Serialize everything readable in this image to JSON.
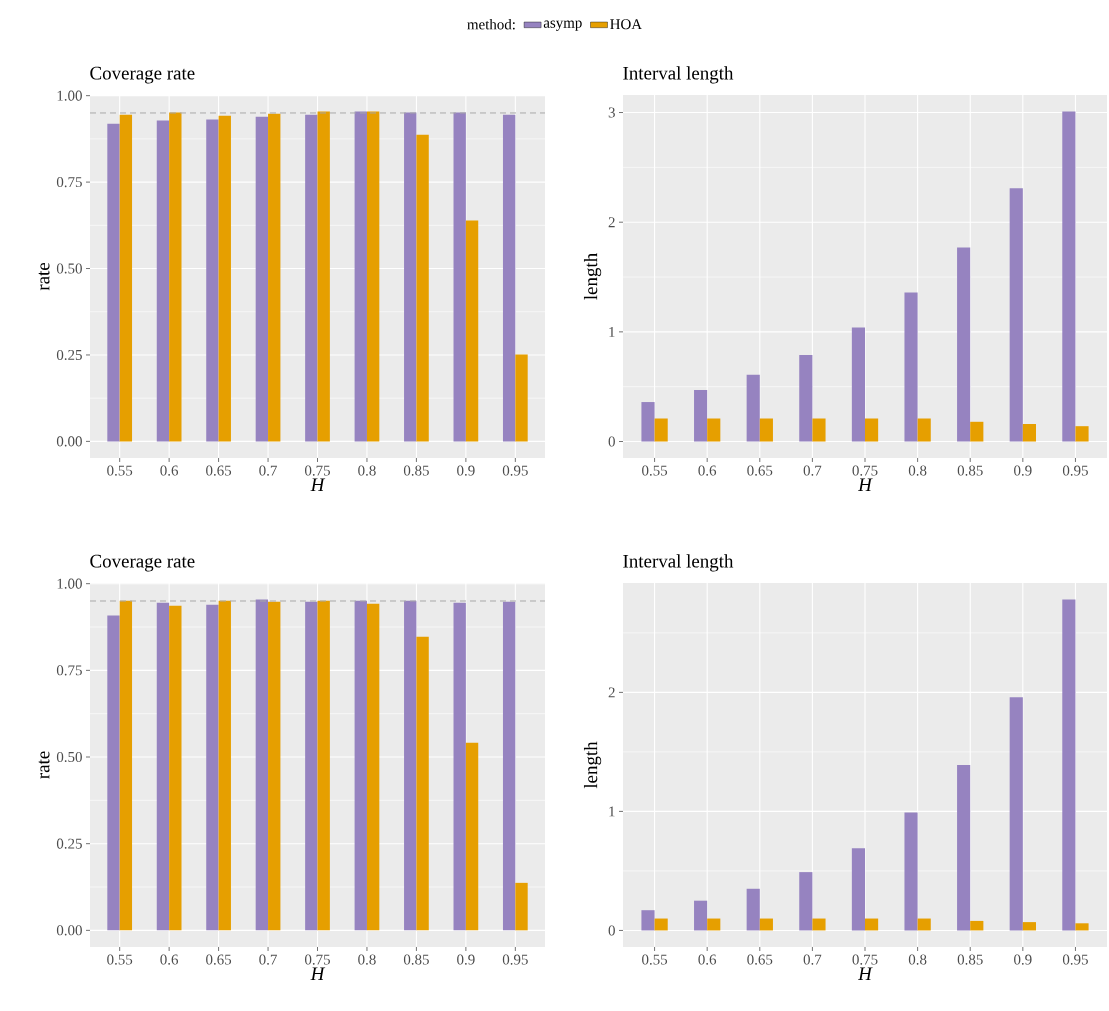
{
  "chart_data": [
    {
      "type": "bar",
      "title": "Coverage rate",
      "xlabel": "H",
      "ylabel": "rate",
      "legend_title": "method:",
      "legend": "top",
      "categories": [
        "0.55",
        "0.6",
        "0.65",
        "0.7",
        "0.75",
        "0.8",
        "0.85",
        "0.9",
        "0.95"
      ],
      "series": [
        {
          "name": "asymp",
          "color": "#9683c0",
          "values": [
            0.919,
            0.928,
            0.931,
            0.939,
            0.945,
            0.954,
            0.951,
            0.951,
            0.945
          ]
        },
        {
          "name": "HOA",
          "color": "#e69f00",
          "values": [
            0.945,
            0.951,
            0.942,
            0.948,
            0.954,
            0.954,
            0.887,
            0.639,
            0.251
          ]
        }
      ],
      "ylim": [
        -0.048,
        1.002
      ],
      "yticks": [
        {
          "value": 0,
          "label": "0.00"
        },
        {
          "value": 0.25,
          "label": "0.25"
        },
        {
          "value": 0.5,
          "label": "0.50"
        },
        {
          "value": 0.75,
          "label": "0.75"
        },
        {
          "value": 1,
          "label": "1.00"
        },
        {
          "value": 0.125,
          "label": null
        },
        {
          "value": 0.375,
          "label": null
        },
        {
          "value": 0.625,
          "label": null
        },
        {
          "value": 0.875,
          "label": null
        }
      ],
      "ref_lines": [
        {
          "axis": "y",
          "value": 0.95,
          "color": "#a8a8a8",
          "line_style": "dashed"
        }
      ],
      "grid": true
    },
    {
      "type": "bar",
      "title": "Interval length",
      "xlabel": "H",
      "ylabel": "length",
      "categories": [
        "0.55",
        "0.6",
        "0.65",
        "0.7",
        "0.75",
        "0.8",
        "0.85",
        "0.9",
        "0.95"
      ],
      "series": [
        {
          "color": "#9683c0",
          "values": [
            0.36,
            0.47,
            0.61,
            0.79,
            1.04,
            1.36,
            1.77,
            2.31,
            3.01
          ]
        },
        {
          "color": "#e69f00",
          "values": [
            0.21,
            0.21,
            0.21,
            0.21,
            0.21,
            0.21,
            0.18,
            0.16,
            0.14
          ]
        }
      ],
      "ylim": [
        -0.15,
        3.16
      ],
      "yticks": [
        0,
        1,
        2,
        3,
        {
          "value": 0.5,
          "label": null
        },
        {
          "value": 1.5,
          "label": null
        },
        {
          "value": 2.5,
          "label": null
        }
      ],
      "grid": true
    },
    {
      "type": "bar",
      "title": "Coverage rate",
      "xlabel": "H",
      "ylabel": "rate",
      "categories": [
        "0.55",
        "0.6",
        "0.65",
        "0.7",
        "0.75",
        "0.8",
        "0.85",
        "0.9",
        "0.95"
      ],
      "series": [
        {
          "color": "#9683c0",
          "values": [
            0.908,
            0.945,
            0.939,
            0.954,
            0.948,
            0.951,
            0.951,
            0.945,
            0.948
          ]
        },
        {
          "color": "#e69f00",
          "values": [
            0.951,
            0.936,
            0.951,
            0.948,
            0.951,
            0.942,
            0.847,
            0.541,
            0.137
          ]
        }
      ],
      "ylim": [
        -0.048,
        1.002
      ],
      "yticks": [
        {
          "value": 0,
          "label": "0.00"
        },
        {
          "value": 0.25,
          "label": "0.25"
        },
        {
          "value": 0.5,
          "label": "0.50"
        },
        {
          "value": 0.75,
          "label": "0.75"
        },
        {
          "value": 1,
          "label": "1.00"
        },
        {
          "value": 0.125,
          "label": null
        },
        {
          "value": 0.375,
          "label": null
        },
        {
          "value": 0.625,
          "label": null
        },
        {
          "value": 0.875,
          "label": null
        }
      ],
      "ref_lines": [
        {
          "axis": "y",
          "value": 0.95,
          "color": "#a8a8a8",
          "line_style": "dashed"
        }
      ],
      "grid": true
    },
    {
      "type": "bar",
      "title": "Interval length",
      "xlabel": "H",
      "ylabel": "length",
      "categories": [
        "0.55",
        "0.6",
        "0.65",
        "0.7",
        "0.75",
        "0.8",
        "0.85",
        "0.9",
        "0.95"
      ],
      "series": [
        {
          "color": "#9683c0",
          "values": [
            0.17,
            0.25,
            0.35,
            0.49,
            0.69,
            0.99,
            1.39,
            1.96,
            2.78
          ]
        },
        {
          "color": "#e69f00",
          "values": [
            0.1,
            0.1,
            0.1,
            0.1,
            0.1,
            0.1,
            0.08,
            0.07,
            0.06
          ]
        }
      ],
      "ylim": [
        -0.139,
        2.919
      ],
      "yticks": [
        0,
        1,
        2,
        {
          "value": 0.5,
          "label": null
        },
        {
          "value": 1.5,
          "label": null
        },
        {
          "value": 2.5,
          "label": null
        }
      ],
      "grid": true
    }
  ]
}
